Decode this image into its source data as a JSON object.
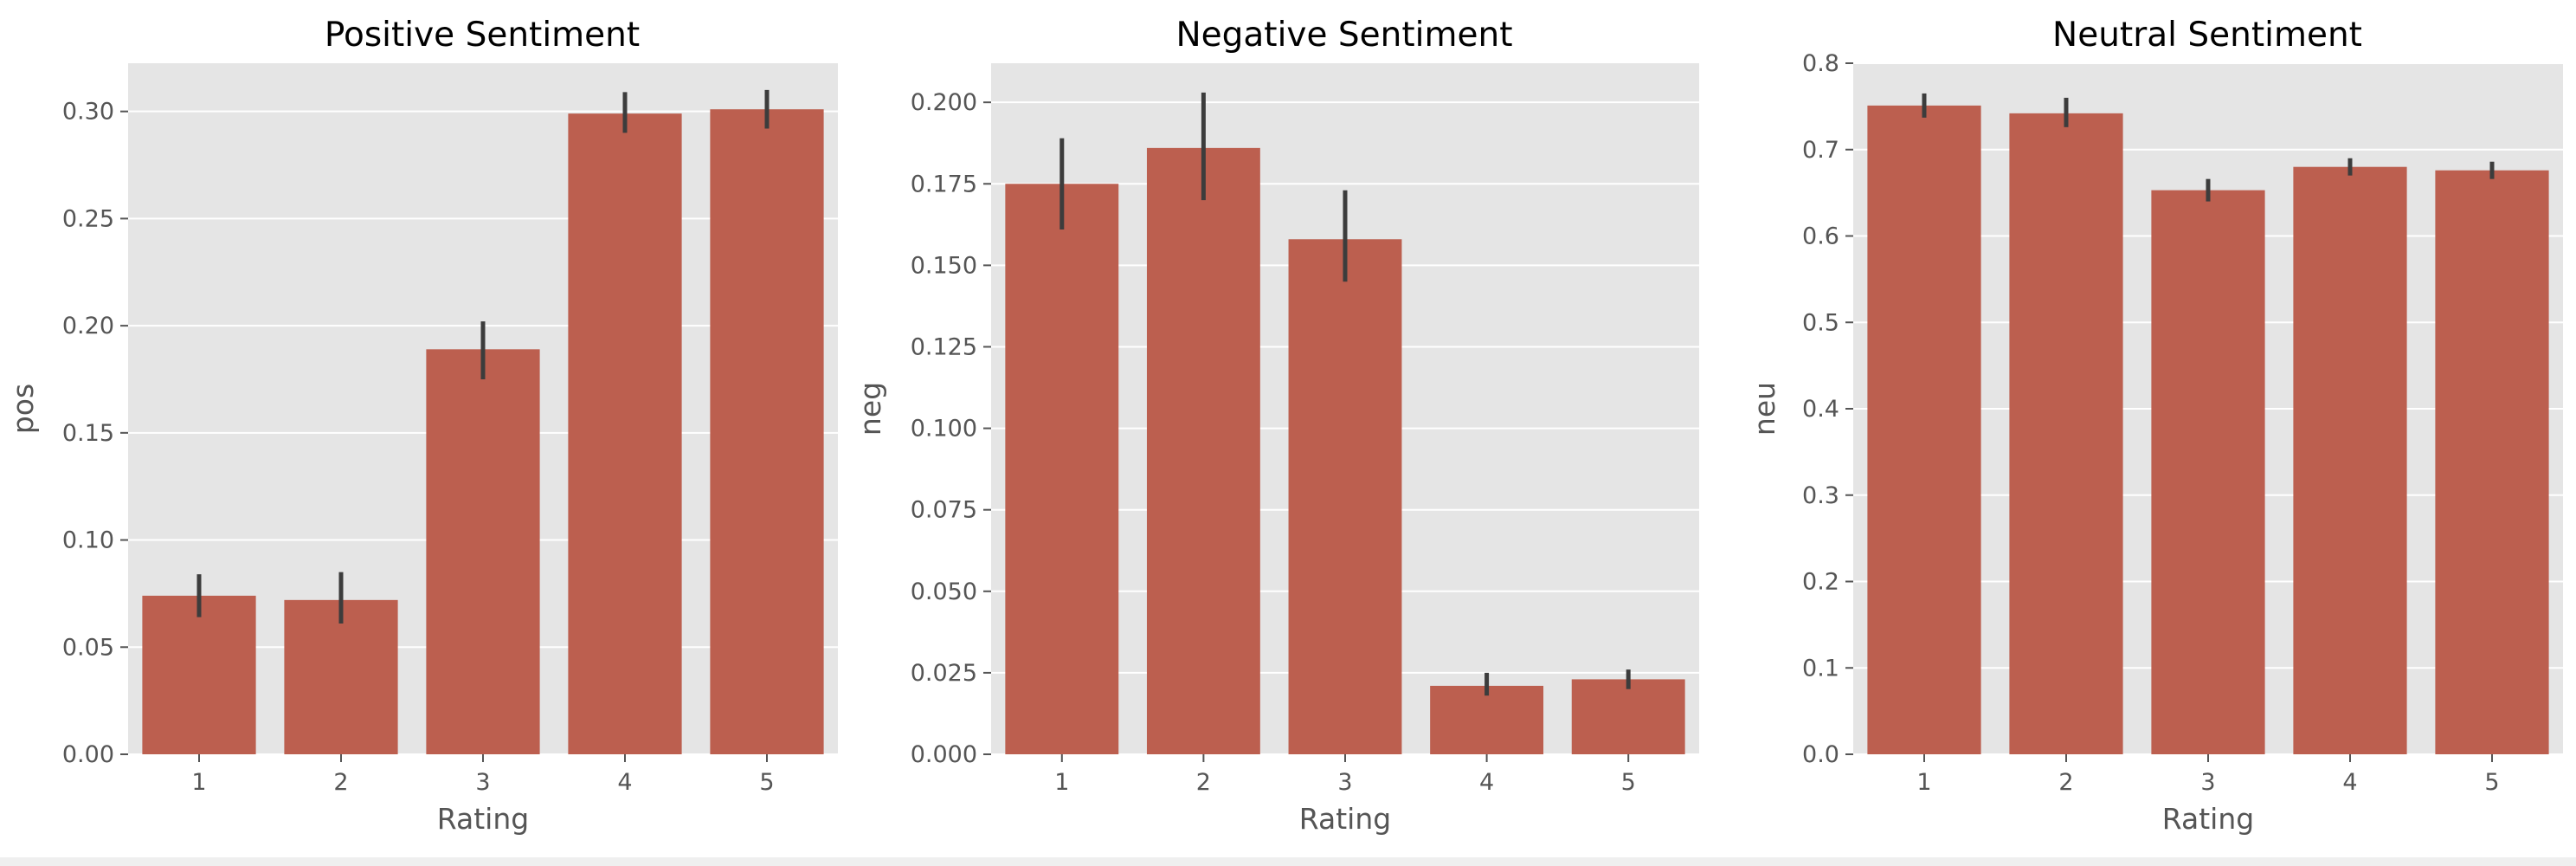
{
  "colors": {
    "bar": "#bc5f4f",
    "plot_background": "#e5e5e5",
    "error_bar": "#3c3c3c",
    "grid": "#ffffff"
  },
  "chart_data": [
    {
      "type": "bar",
      "title": "Positive Sentiment",
      "xlabel": "Rating",
      "ylabel": "pos",
      "categories": [
        "1",
        "2",
        "3",
        "4",
        "5"
      ],
      "values": [
        0.074,
        0.072,
        0.189,
        0.299,
        0.301
      ],
      "error_bars": [
        [
          0.064,
          0.084
        ],
        [
          0.061,
          0.085
        ],
        [
          0.175,
          0.202
        ],
        [
          0.29,
          0.309
        ],
        [
          0.292,
          0.31
        ]
      ],
      "ylim": [
        0,
        0.3225
      ],
      "yticks": [
        0.0,
        0.05,
        0.1,
        0.15,
        0.2,
        0.25,
        0.3
      ],
      "ytick_labels": [
        "0.00",
        "0.05",
        "0.10",
        "0.15",
        "0.20",
        "0.25",
        "0.30"
      ],
      "grid": true,
      "legend": "none"
    },
    {
      "type": "bar",
      "title": "Negative Sentiment",
      "xlabel": "Rating",
      "ylabel": "neg",
      "categories": [
        "1",
        "2",
        "3",
        "4",
        "5"
      ],
      "values": [
        0.175,
        0.186,
        0.158,
        0.021,
        0.023
      ],
      "error_bars": [
        [
          0.161,
          0.189
        ],
        [
          0.17,
          0.203
        ],
        [
          0.145,
          0.173
        ],
        [
          0.018,
          0.025
        ],
        [
          0.02,
          0.026
        ]
      ],
      "ylim": [
        0,
        0.212
      ],
      "yticks": [
        0.0,
        0.025,
        0.05,
        0.075,
        0.1,
        0.125,
        0.15,
        0.175,
        0.2
      ],
      "ytick_labels": [
        "0.000",
        "0.025",
        "0.050",
        "0.075",
        "0.100",
        "0.125",
        "0.150",
        "0.175",
        "0.200"
      ],
      "grid": true,
      "legend": "none"
    },
    {
      "type": "bar",
      "title": "Neutral Sentiment",
      "xlabel": "Rating",
      "ylabel": "neu",
      "categories": [
        "1",
        "2",
        "3",
        "4",
        "5"
      ],
      "values": [
        0.751,
        0.742,
        0.653,
        0.68,
        0.676
      ],
      "error_bars": [
        [
          0.737,
          0.765
        ],
        [
          0.726,
          0.76
        ],
        [
          0.64,
          0.666
        ],
        [
          0.67,
          0.69
        ],
        [
          0.666,
          0.686
        ]
      ],
      "ylim": [
        0,
        0.8
      ],
      "yticks": [
        0.0,
        0.1,
        0.2,
        0.3,
        0.4,
        0.5,
        0.6,
        0.7,
        0.8
      ],
      "ytick_labels": [
        "0.0",
        "0.1",
        "0.2",
        "0.3",
        "0.4",
        "0.5",
        "0.6",
        "0.7",
        "0.8"
      ],
      "grid": true,
      "legend": "none"
    }
  ]
}
